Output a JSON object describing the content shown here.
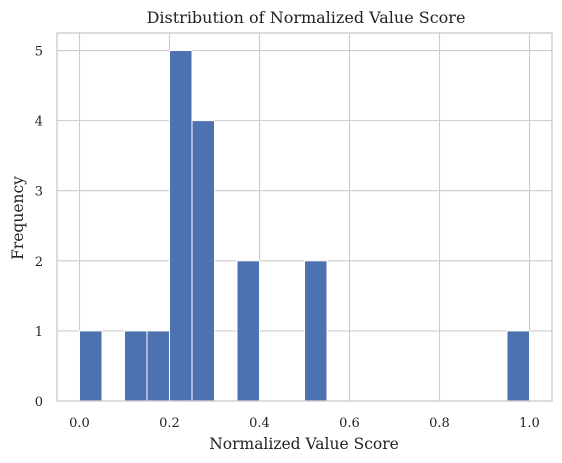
{
  "chart_data": {
    "type": "bar",
    "title": "Distribution of Normalized Value Score",
    "xlabel": "Normalized Value Score",
    "ylabel": "Frequency",
    "xlim": [
      -0.05,
      1.05
    ],
    "ylim": [
      0,
      5.25
    ],
    "x_ticks": [
      0.0,
      0.2,
      0.4,
      0.6,
      0.8,
      1.0
    ],
    "x_tick_labels": [
      "0.0",
      "0.2",
      "0.4",
      "0.6",
      "0.8",
      "1.0"
    ],
    "y_ticks": [
      0,
      1,
      2,
      3,
      4,
      5
    ],
    "y_tick_labels": [
      "0",
      "1",
      "2",
      "3",
      "4",
      "5"
    ],
    "bin_width": 0.05,
    "bins": [
      {
        "start": 0.0,
        "end": 0.05,
        "count": 1
      },
      {
        "start": 0.1,
        "end": 0.15,
        "count": 1
      },
      {
        "start": 0.15,
        "end": 0.2,
        "count": 1
      },
      {
        "start": 0.2,
        "end": 0.25,
        "count": 5
      },
      {
        "start": 0.25,
        "end": 0.3,
        "count": 4
      },
      {
        "start": 0.35,
        "end": 0.4,
        "count": 2
      },
      {
        "start": 0.5,
        "end": 0.55,
        "count": 2
      },
      {
        "start": 0.95,
        "end": 1.0,
        "count": 1
      }
    ],
    "grid": true,
    "bar_color": "#4c72b0",
    "grid_color": "#cccccc",
    "text_color": "#222222"
  }
}
